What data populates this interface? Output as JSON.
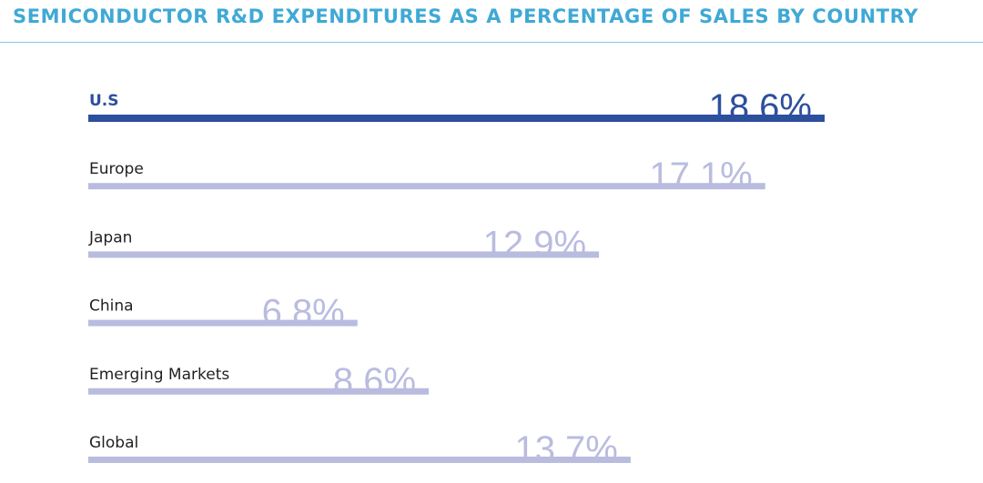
{
  "title": "SEMICONDUCTOR R&D EXPENDITURES AS A PERCENTAGE OF SALES BY COUNTRY",
  "chart_data": {
    "type": "bar",
    "orientation": "horizontal",
    "categories": [
      "U.S",
      "Europe",
      "Japan",
      "China",
      "Emerging Markets",
      "Global"
    ],
    "values": [
      18.6,
      17.1,
      12.9,
      6.8,
      8.6,
      13.7
    ],
    "value_labels": [
      "18.6%",
      "17.1%",
      "12.9%",
      "6.8%",
      "8.6%",
      "13.7%"
    ],
    "highlight_index": 0,
    "xlim": [
      0,
      18.6
    ],
    "grid": false,
    "colors": {
      "highlight": "#2d4f9e",
      "bar": "#b9bcdf",
      "value_label_other": "#b9bcdf",
      "title": "#3fa9d5",
      "rule": "#7fcbe6"
    }
  }
}
